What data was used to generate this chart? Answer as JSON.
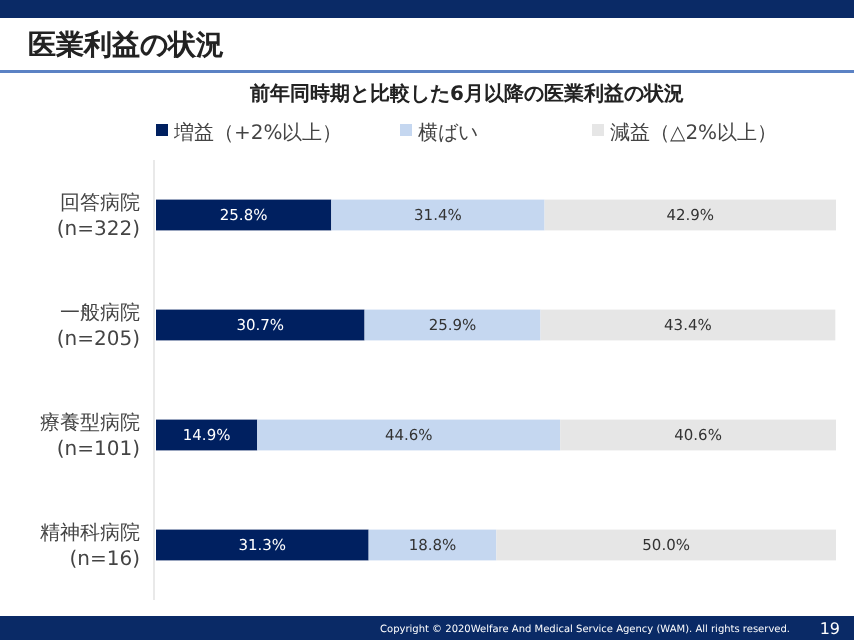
{
  "chart_data": {
    "type": "bar",
    "orientation": "horizontal",
    "stacked": true,
    "title": "医業利益の状況",
    "subtitle": "前年同時期と比較した6月以降の医業利益の状況",
    "categories": [
      "回答病院\n(n=322)",
      "一般病院\n(n=205)",
      "療養型病院\n(n=101)",
      "精神科病院\n(n=16)"
    ],
    "series": [
      {
        "name": "増益（+2%以上）",
        "color": "#002060",
        "values": [
          25.8,
          30.7,
          14.9,
          31.3
        ],
        "value_labels": [
          "25.8%",
          "30.7%",
          "14.9%",
          "31.3%"
        ]
      },
      {
        "name": "横ばい",
        "color": "#c5d7f0",
        "values": [
          31.4,
          25.9,
          44.6,
          18.8
        ],
        "value_labels": [
          "31.4%",
          "25.9%",
          "44.6%",
          "18.8%"
        ]
      },
      {
        "name": "減益（△2%以上）",
        "color": "#e6e6e6",
        "values": [
          42.9,
          43.4,
          40.6,
          50.0
        ],
        "value_labels": [
          "42.9%",
          "43.4%",
          "40.6%",
          "50.0%"
        ]
      }
    ],
    "legend": "top",
    "annotations": [
      "Copyright © 2020Welfare And Medical Service Agency (WAM). All rights reserved.",
      "19"
    ]
  }
}
